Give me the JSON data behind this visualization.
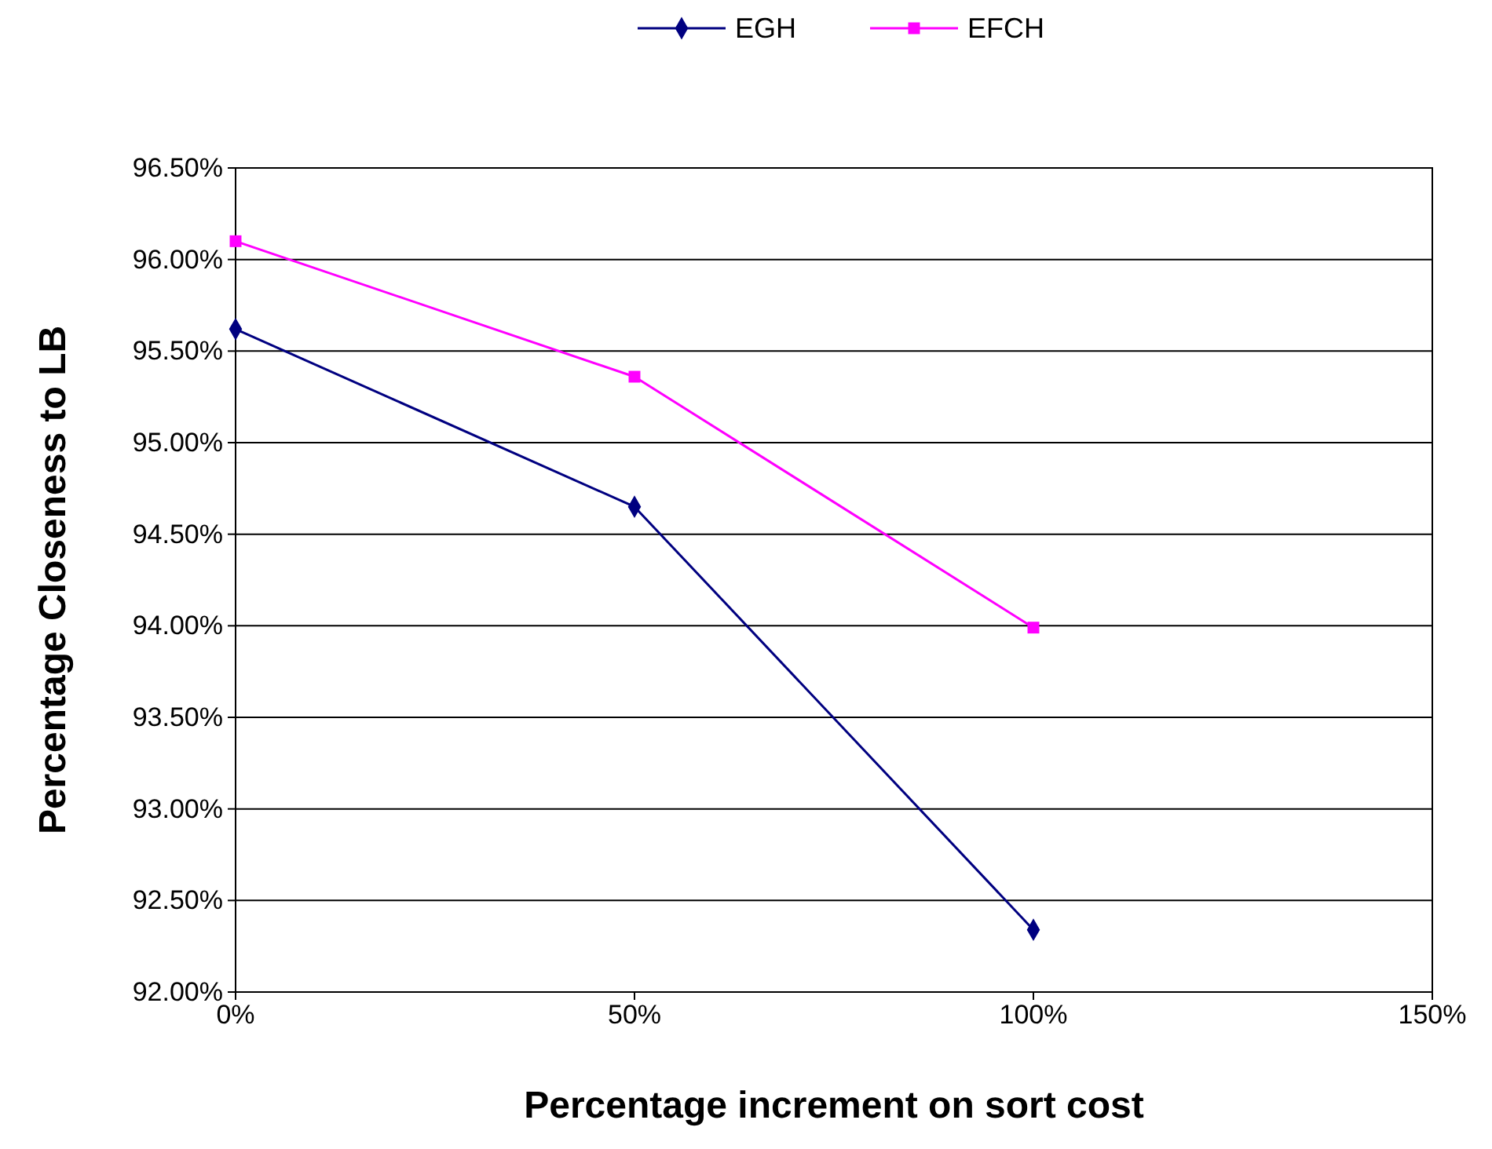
{
  "chart_data": {
    "type": "line",
    "xlabel": "Percentage increment on sort cost",
    "ylabel": "Percentage Closeness to LB",
    "x": [
      0,
      50,
      100
    ],
    "series": [
      {
        "name": "EGH",
        "color": "#000080",
        "marker": "diamond",
        "values": [
          95.62,
          94.65,
          92.34
        ]
      },
      {
        "name": "EFCH",
        "color": "#ff00ff",
        "marker": "square",
        "values": [
          96.1,
          95.36,
          93.99
        ]
      }
    ],
    "xlim": [
      0,
      150
    ],
    "xticks": [
      {
        "value": 0,
        "label": "0%"
      },
      {
        "value": 50,
        "label": "50%"
      },
      {
        "value": 100,
        "label": "100%"
      },
      {
        "value": 150,
        "label": "150%"
      }
    ],
    "ylim": [
      92,
      96.5
    ],
    "yticks": [
      {
        "value": 92,
        "label": "92.00%"
      },
      {
        "value": 92.5,
        "label": "92.50%"
      },
      {
        "value": 93,
        "label": "93.00%"
      },
      {
        "value": 93.5,
        "label": "93.50%"
      },
      {
        "value": 94,
        "label": "94.00%"
      },
      {
        "value": 94.5,
        "label": "94.50%"
      },
      {
        "value": 95,
        "label": "95.00%"
      },
      {
        "value": 95.5,
        "label": "95.50%"
      },
      {
        "value": 96,
        "label": "96.00%"
      },
      {
        "value": 96.5,
        "label": "96.50%"
      }
    ],
    "grid": "y",
    "legend": "top",
    "line_style": "solid"
  }
}
